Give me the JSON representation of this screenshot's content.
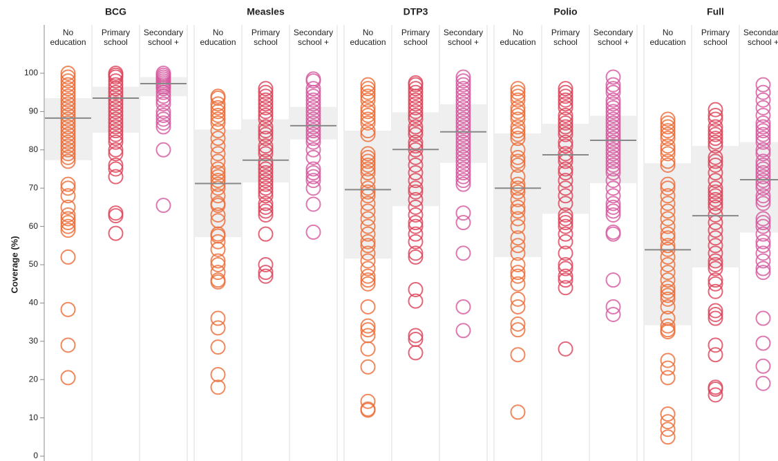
{
  "chart_data": {
    "type": "strip",
    "y_label": "Coverage (%)",
    "ylim": [
      0,
      100
    ],
    "yticks": [
      0,
      10,
      20,
      30,
      40,
      50,
      60,
      70,
      80,
      90,
      100
    ],
    "group_labels": [
      [
        "No",
        "education"
      ],
      [
        "Primary",
        "school"
      ],
      [
        "Secondary",
        "school +"
      ]
    ],
    "group_colors": [
      "#ec6a35",
      "#dc3f55",
      "#d5569e"
    ],
    "facets": [
      {
        "title": "BCG",
        "groups": [
          {
            "median": 88.3,
            "band": [
              77.3,
              93.5
            ],
            "values": [
              100,
              99,
              98,
              97,
              96,
              95,
              94,
              93,
              92,
              91,
              90,
              89,
              88,
              87,
              86,
              85,
              84,
              83,
              82,
              81,
              80,
              79,
              78,
              77,
              71,
              70,
              68,
              65,
              63,
              62,
              61,
              60,
              59,
              52,
              38.3,
              29,
              20.5
            ]
          },
          {
            "median": 93.5,
            "band": [
              84.5,
              96.5
            ],
            "values": [
              100,
              99.5,
              99,
              98,
              97,
              96,
              95,
              94,
              93,
              92,
              91,
              90,
              89,
              88,
              87,
              86,
              85,
              84,
              83,
              82,
              80,
              79,
              76,
              75,
              73,
              63.5,
              62.8,
              58.2
            ]
          },
          {
            "median": 97.3,
            "band": [
              94,
              99
            ],
            "values": [
              100,
              99.5,
              99,
              98.5,
              98,
              97.5,
              97,
              96.5,
              96,
              95,
              94,
              93,
              92,
              90,
              89,
              88,
              87,
              86,
              80,
              65.5
            ]
          }
        ]
      },
      {
        "title": "Measles",
        "groups": [
          {
            "median": 71.2,
            "band": [
              57.2,
              85.3
            ],
            "values": [
              94,
              93.5,
              92,
              91,
              90,
              89,
              88,
              87,
              85,
              83,
              81,
              79,
              77,
              75,
              74,
              73,
              72,
              71,
              70,
              68,
              66,
              65.5,
              63,
              61.5,
              58,
              57.5,
              56,
              54,
              51,
              50,
              48,
              46,
              45.5,
              36,
              33.5,
              28.5,
              21.3,
              18
            ]
          },
          {
            "median": 77.3,
            "band": [
              71.5,
              88
            ],
            "values": [
              96,
              95,
              94,
              93,
              92,
              91,
              90,
              89,
              88,
              86,
              85,
              84,
              83,
              81,
              80,
              79,
              77,
              76,
              75,
              74,
              73,
              72,
              71,
              70,
              69,
              68,
              66,
              65,
              64,
              63,
              58,
              50,
              48,
              47
            ]
          },
          {
            "median": 86.3,
            "band": [
              82.7,
              91.2
            ],
            "values": [
              98.5,
              98,
              96,
              95,
              94,
              93,
              92,
              91,
              90,
              89,
              88,
              87,
              86,
              85,
              84,
              83,
              82,
              80,
              78,
              75,
              74,
              73,
              72,
              70,
              65.8,
              58.5
            ]
          }
        ]
      },
      {
        "title": "DTP3",
        "groups": [
          {
            "median": 69.6,
            "band": [
              51.6,
              85
            ],
            "values": [
              97,
              96,
              95,
              94,
              93,
              91,
              90,
              89,
              88,
              87,
              85,
              84,
              79,
              78,
              77,
              76,
              75,
              74,
              72,
              70,
              69,
              68,
              66,
              64,
              62,
              60,
              58,
              56,
              55,
              53,
              51,
              49,
              47,
              46,
              45,
              39,
              34,
              33,
              31.5,
              28,
              23.3,
              14.3,
              12.3,
              12
            ]
          },
          {
            "median": 80.1,
            "band": [
              65.3,
              89.8
            ],
            "values": [
              97.5,
              97,
              96,
              95,
              94,
              93,
              92,
              91,
              90,
              89,
              88,
              86,
              85,
              84,
              82,
              81,
              80,
              78,
              76,
              74,
              72,
              70,
              69,
              67,
              65,
              63,
              61,
              60,
              58,
              56,
              53,
              52,
              43.5,
              40.5,
              31.5,
              30.5,
              27
            ]
          },
          {
            "median": 84.7,
            "band": [
              76.6,
              91.9
            ],
            "values": [
              99,
              98,
              97,
              96,
              95,
              94,
              93,
              92,
              91,
              90,
              89,
              88,
              87,
              86,
              85,
              84,
              83,
              82,
              81,
              80,
              79,
              78,
              77,
              76,
              75,
              74,
              73,
              72,
              71,
              63.5,
              61,
              53,
              39,
              32.8
            ]
          }
        ]
      },
      {
        "title": "Polio",
        "groups": [
          {
            "median": 70,
            "band": [
              52,
              84.3
            ],
            "values": [
              96,
              95,
              94,
              93,
              91,
              90,
              89,
              88,
              86,
              85,
              84,
              83,
              80,
              78,
              77,
              76,
              73,
              71,
              70,
              69,
              67,
              65,
              64,
              62,
              60,
              57,
              55,
              53,
              50,
              48,
              47,
              45,
              41,
              39,
              34.5,
              33,
              26.5,
              11.5
            ]
          },
          {
            "median": 78.7,
            "band": [
              63.3,
              86.8
            ],
            "values": [
              96,
              95,
              94,
              93,
              92,
              91,
              89,
              88,
              87,
              86,
              85,
              84,
              82,
              81,
              79,
              78,
              77,
              75,
              74,
              72,
              70,
              68,
              66,
              63,
              62,
              61,
              60,
              58,
              56,
              53,
              50,
              49,
              47,
              46,
              44,
              28
            ]
          },
          {
            "median": 82.5,
            "band": [
              71.3,
              88.9
            ],
            "values": [
              99,
              97,
              96,
              95,
              93,
              92,
              91,
              90,
              89,
              88,
              87,
              86,
              85,
              84,
              83,
              82,
              81,
              80,
              79,
              78,
              77,
              76,
              75,
              74,
              72,
              70,
              68,
              66,
              65,
              64,
              63,
              58.5,
              58,
              46,
              39,
              37
            ]
          }
        ]
      },
      {
        "title": "Full",
        "groups": [
          {
            "median": 53.9,
            "band": [
              34.2,
              76.5
            ],
            "values": [
              88,
              87,
              86,
              85,
              84,
              83,
              81,
              80,
              79,
              77,
              76,
              71,
              70,
              68,
              66,
              64,
              62,
              60,
              58,
              57,
              55,
              54,
              52,
              50,
              48,
              46,
              44,
              43,
              42,
              41,
              39,
              36,
              34,
              33,
              32.5,
              25,
              23,
              20.5,
              11,
              9,
              7,
              5
            ]
          },
          {
            "median": 62.8,
            "band": [
              49.3,
              81
            ],
            "values": [
              90.5,
              89,
              88,
              86,
              85,
              84,
              83,
              82,
              81,
              78,
              77,
              76,
              74,
              72,
              70,
              69,
              68,
              67,
              66,
              65,
              63,
              61,
              59,
              57,
              55,
              53,
              51,
              50,
              49,
              46,
              45,
              43,
              38,
              37,
              36,
              29,
              26.5,
              18,
              17.5,
              16
            ]
          },
          {
            "median": 72.2,
            "band": [
              58.4,
              82
            ],
            "values": [
              97,
              95,
              93,
              91,
              89,
              87,
              86,
              85,
              84,
              83,
              82,
              80,
              79,
              77,
              76,
              75,
              74,
              73,
              72,
              71,
              70,
              68,
              67,
              66,
              62,
              61,
              60,
              58,
              56,
              55,
              53,
              51,
              49,
              48,
              36,
              29.5,
              23.5,
              19
            ]
          }
        ]
      }
    ]
  }
}
